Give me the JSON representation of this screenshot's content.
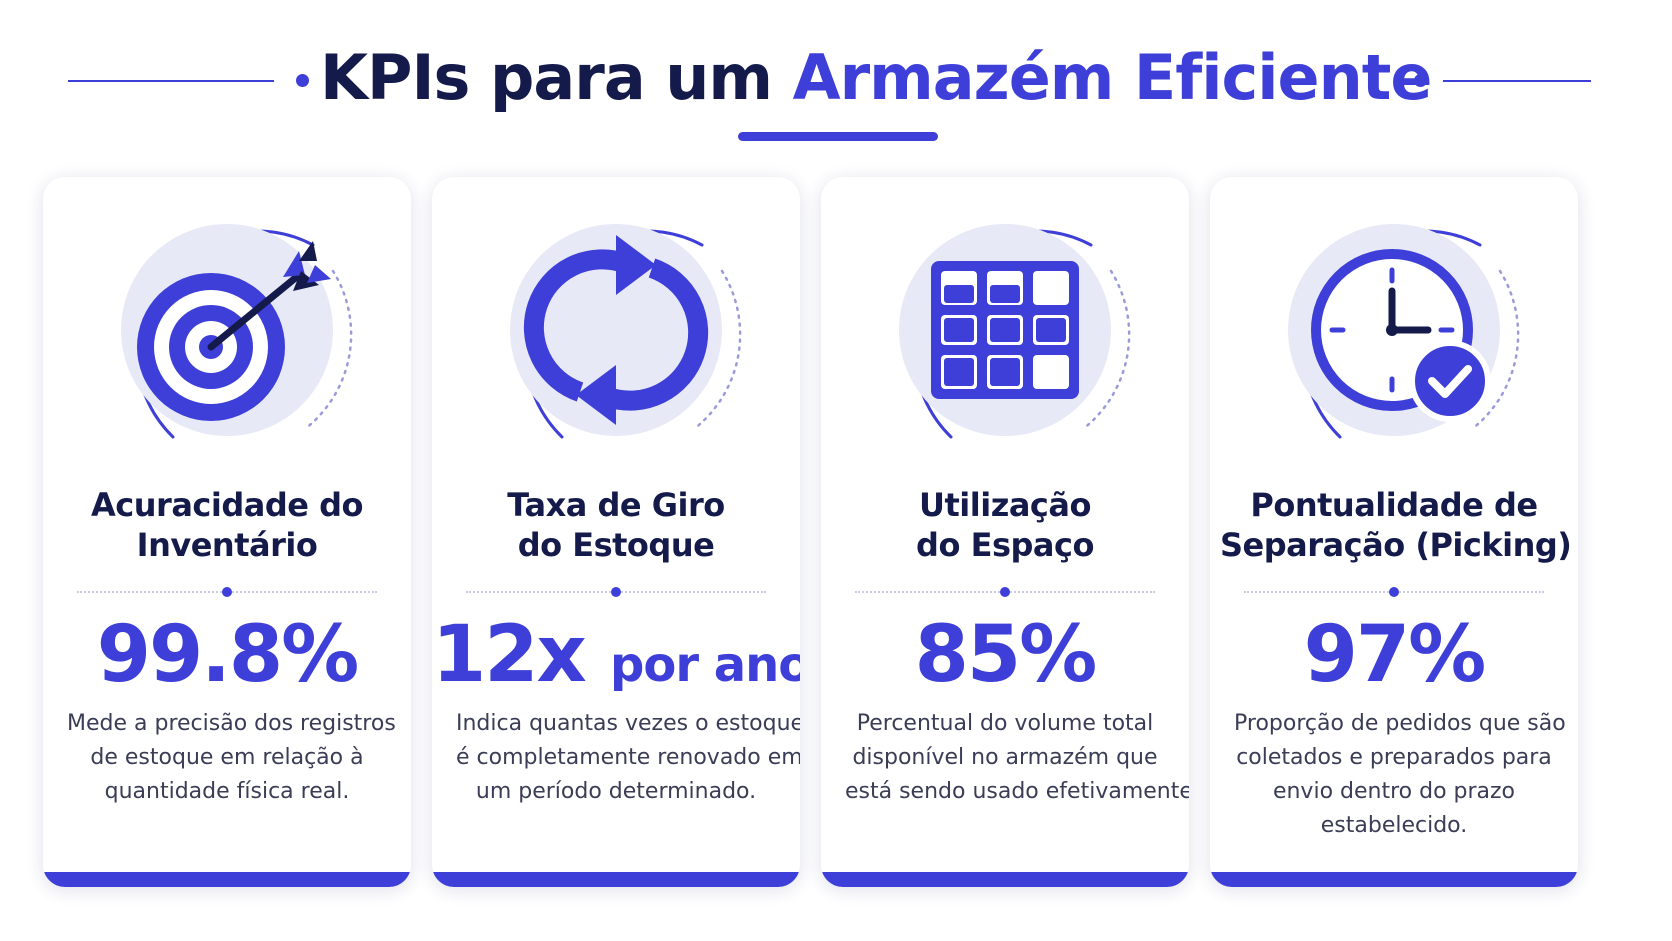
{
  "header": {
    "title_part1": "KPIs para um",
    "title_part2": "Armazém Eficiente"
  },
  "colors": {
    "accent": "#3e3fd8",
    "dark_text": "#141a4a",
    "icon_circle": "#e8e9f7"
  },
  "cards": [
    {
      "icon": "target-arrow-icon",
      "title_lines": [
        "Acuracidade do",
        "Inventário"
      ],
      "value": "99.8%",
      "value_unit": "",
      "description_lines": [
        "Mede a precisão dos registros",
        "de estoque em relação à",
        "quantidade física real."
      ]
    },
    {
      "icon": "refresh-arrows-icon",
      "title_lines": [
        "Taxa de Giro",
        "do Estoque"
      ],
      "value": "12x",
      "value_unit": "por ano",
      "description_lines": [
        "Indica quantas vezes o estoque",
        "é completamente renovado em",
        "um período determinado."
      ]
    },
    {
      "icon": "shelf-grid-icon",
      "title_lines": [
        "Utilização",
        "do Espaço"
      ],
      "value": "85%",
      "value_unit": "",
      "description_lines": [
        "Percentual do volume total",
        "disponível no armazém que",
        "está sendo usado efetivamente."
      ]
    },
    {
      "icon": "clock-check-icon",
      "title_lines": [
        "Pontualidade de",
        "Separação (Picking)"
      ],
      "value": "97%",
      "value_unit": "",
      "description_lines": [
        "Proporção de pedidos que são",
        "coletados e preparados para",
        "envio dentro do prazo",
        "estabelecido."
      ]
    }
  ]
}
